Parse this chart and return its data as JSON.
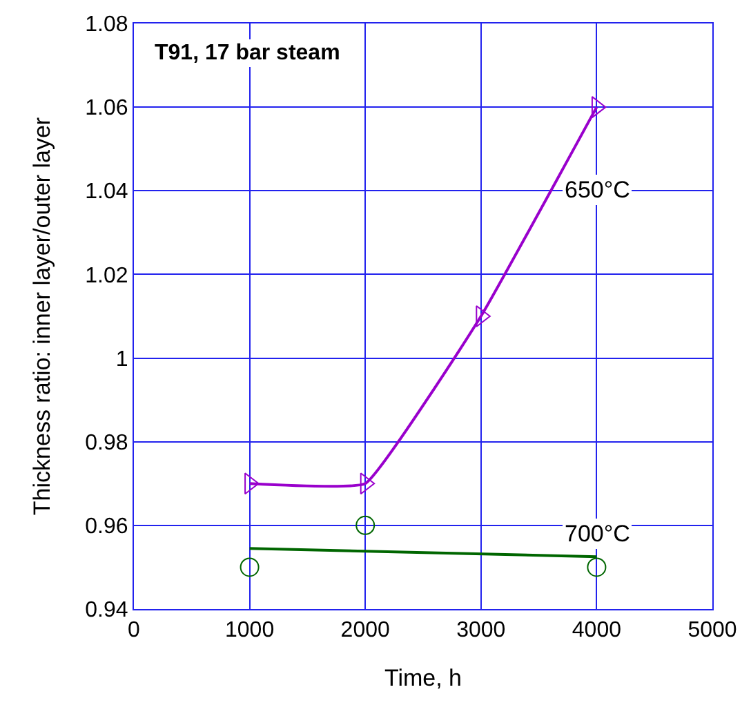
{
  "chart_data": {
    "type": "line",
    "title": "T91, 17 bar steam",
    "xlabel": "Time, h",
    "ylabel": "Thickness ratio: inner layer/outer layer",
    "series": [
      {
        "name": "650°C",
        "color": "#9900cc",
        "type": "line",
        "marker": "triangle",
        "x": [
          1000,
          2000,
          3000,
          4000
        ],
        "values": [
          0.97,
          0.97,
          1.01,
          1.06
        ]
      },
      {
        "name": "700°C",
        "color": "#006600",
        "type": "scatter",
        "marker": "circle",
        "x": [
          1000,
          2000,
          4000
        ],
        "values": [
          0.95,
          0.96,
          0.95
        ]
      },
      {
        "color": "#006600",
        "type": "line",
        "marker": "none",
        "x": [
          1000,
          4000
        ],
        "values": [
          0.9545,
          0.9525
        ]
      }
    ],
    "xlim": [
      0,
      5000
    ],
    "xticks": [
      0,
      1000,
      2000,
      3000,
      4000,
      5000
    ],
    "ylim": [
      0.94,
      1.08
    ],
    "yticks": [
      0.94,
      0.96,
      0.98,
      {
        "value": 1,
        "label": "1"
      },
      1.02,
      1.04,
      1.06,
      1.08
    ],
    "grid": true,
    "legend": false,
    "line_style": "solid"
  }
}
